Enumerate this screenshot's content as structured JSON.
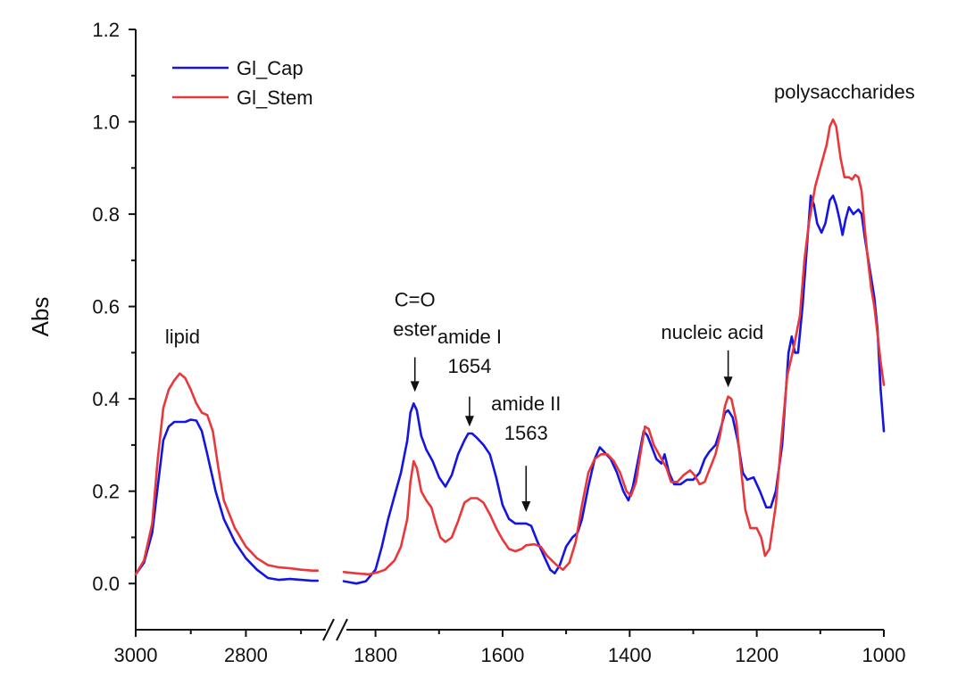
{
  "chart_data": {
    "type": "line",
    "title": "",
    "xlabel": "",
    "ylabel": "Abs",
    "ylim": [
      -0.1,
      1.2
    ],
    "xlim_segments": [
      [
        3000,
        2650
      ],
      [
        1850,
        1000
      ]
    ],
    "x_break": true,
    "grid": false,
    "legend_position": "top-left",
    "x_ticks": [
      3000,
      2800,
      1800,
      1600,
      1400,
      1200,
      1000
    ],
    "y_ticks": [
      0.0,
      0.2,
      0.4,
      0.6,
      0.8,
      1.0,
      1.2
    ],
    "y_tick_labels": [
      "0.0",
      "0.2",
      "0.4",
      "0.6",
      "0.8",
      "1.0",
      "1.2"
    ],
    "series": [
      {
        "name": "Gl_Cap",
        "color": "#1515e0",
        "points": [
          [
            3000,
            0.02
          ],
          [
            2985,
            0.045
          ],
          [
            2970,
            0.11
          ],
          [
            2960,
            0.21
          ],
          [
            2950,
            0.31
          ],
          [
            2940,
            0.34
          ],
          [
            2930,
            0.35
          ],
          [
            2920,
            0.35
          ],
          [
            2910,
            0.35
          ],
          [
            2900,
            0.355
          ],
          [
            2890,
            0.353
          ],
          [
            2880,
            0.33
          ],
          [
            2870,
            0.28
          ],
          [
            2855,
            0.2
          ],
          [
            2840,
            0.14
          ],
          [
            2820,
            0.09
          ],
          [
            2800,
            0.055
          ],
          [
            2780,
            0.03
          ],
          [
            2760,
            0.012
          ],
          [
            2740,
            0.008
          ],
          [
            2720,
            0.01
          ],
          [
            2700,
            0.008
          ],
          [
            2680,
            0.006
          ],
          [
            2670,
            0.006
          ],
          [
            1850,
            0.005
          ],
          [
            1830,
            0.0
          ],
          [
            1815,
            0.005
          ],
          [
            1800,
            0.03
          ],
          [
            1790,
            0.08
          ],
          [
            1780,
            0.14
          ],
          [
            1770,
            0.19
          ],
          [
            1760,
            0.24
          ],
          [
            1750,
            0.31
          ],
          [
            1745,
            0.37
          ],
          [
            1740,
            0.39
          ],
          [
            1735,
            0.375
          ],
          [
            1728,
            0.32
          ],
          [
            1720,
            0.29
          ],
          [
            1710,
            0.265
          ],
          [
            1700,
            0.23
          ],
          [
            1690,
            0.21
          ],
          [
            1680,
            0.235
          ],
          [
            1670,
            0.28
          ],
          [
            1660,
            0.31
          ],
          [
            1654,
            0.325
          ],
          [
            1648,
            0.325
          ],
          [
            1640,
            0.315
          ],
          [
            1630,
            0.3
          ],
          [
            1620,
            0.28
          ],
          [
            1610,
            0.23
          ],
          [
            1600,
            0.17
          ],
          [
            1590,
            0.14
          ],
          [
            1580,
            0.13
          ],
          [
            1570,
            0.13
          ],
          [
            1563,
            0.13
          ],
          [
            1555,
            0.125
          ],
          [
            1545,
            0.09
          ],
          [
            1535,
            0.06
          ],
          [
            1525,
            0.03
          ],
          [
            1518,
            0.022
          ],
          [
            1510,
            0.04
          ],
          [
            1500,
            0.08
          ],
          [
            1490,
            0.1
          ],
          [
            1482,
            0.11
          ],
          [
            1475,
            0.14
          ],
          [
            1465,
            0.21
          ],
          [
            1455,
            0.27
          ],
          [
            1447,
            0.295
          ],
          [
            1440,
            0.285
          ],
          [
            1430,
            0.27
          ],
          [
            1420,
            0.24
          ],
          [
            1410,
            0.2
          ],
          [
            1402,
            0.18
          ],
          [
            1395,
            0.21
          ],
          [
            1385,
            0.28
          ],
          [
            1378,
            0.33
          ],
          [
            1372,
            0.32
          ],
          [
            1365,
            0.295
          ],
          [
            1358,
            0.27
          ],
          [
            1350,
            0.26
          ],
          [
            1345,
            0.28
          ],
          [
            1338,
            0.24
          ],
          [
            1330,
            0.215
          ],
          [
            1320,
            0.215
          ],
          [
            1310,
            0.225
          ],
          [
            1300,
            0.225
          ],
          [
            1290,
            0.24
          ],
          [
            1282,
            0.27
          ],
          [
            1275,
            0.285
          ],
          [
            1265,
            0.3
          ],
          [
            1258,
            0.33
          ],
          [
            1250,
            0.37
          ],
          [
            1245,
            0.375
          ],
          [
            1238,
            0.36
          ],
          [
            1230,
            0.31
          ],
          [
            1222,
            0.24
          ],
          [
            1215,
            0.225
          ],
          [
            1205,
            0.23
          ],
          [
            1195,
            0.2
          ],
          [
            1185,
            0.165
          ],
          [
            1178,
            0.165
          ],
          [
            1170,
            0.2
          ],
          [
            1160,
            0.3
          ],
          [
            1150,
            0.5
          ],
          [
            1145,
            0.535
          ],
          [
            1140,
            0.5
          ],
          [
            1135,
            0.5
          ],
          [
            1128,
            0.6
          ],
          [
            1120,
            0.75
          ],
          [
            1115,
            0.84
          ],
          [
            1110,
            0.82
          ],
          [
            1105,
            0.78
          ],
          [
            1098,
            0.76
          ],
          [
            1092,
            0.78
          ],
          [
            1085,
            0.83
          ],
          [
            1080,
            0.84
          ],
          [
            1075,
            0.82
          ],
          [
            1070,
            0.79
          ],
          [
            1065,
            0.755
          ],
          [
            1060,
            0.79
          ],
          [
            1055,
            0.815
          ],
          [
            1048,
            0.8
          ],
          [
            1040,
            0.81
          ],
          [
            1035,
            0.8
          ],
          [
            1030,
            0.75
          ],
          [
            1022,
            0.68
          ],
          [
            1015,
            0.62
          ],
          [
            1010,
            0.55
          ],
          [
            1005,
            0.42
          ],
          [
            1000,
            0.33
          ]
        ]
      },
      {
        "name": "Gl_Stem",
        "color": "#e8383c",
        "points": [
          [
            3000,
            0.02
          ],
          [
            2985,
            0.05
          ],
          [
            2970,
            0.13
          ],
          [
            2960,
            0.27
          ],
          [
            2950,
            0.38
          ],
          [
            2940,
            0.42
          ],
          [
            2930,
            0.44
          ],
          [
            2920,
            0.455
          ],
          [
            2910,
            0.445
          ],
          [
            2900,
            0.42
          ],
          [
            2890,
            0.39
          ],
          [
            2880,
            0.37
          ],
          [
            2870,
            0.365
          ],
          [
            2860,
            0.33
          ],
          [
            2850,
            0.25
          ],
          [
            2840,
            0.18
          ],
          [
            2820,
            0.12
          ],
          [
            2800,
            0.08
          ],
          [
            2780,
            0.055
          ],
          [
            2760,
            0.04
          ],
          [
            2740,
            0.035
          ],
          [
            2720,
            0.033
          ],
          [
            2700,
            0.03
          ],
          [
            2680,
            0.028
          ],
          [
            2670,
            0.028
          ],
          [
            1850,
            0.025
          ],
          [
            1830,
            0.022
          ],
          [
            1810,
            0.02
          ],
          [
            1795,
            0.025
          ],
          [
            1785,
            0.03
          ],
          [
            1770,
            0.05
          ],
          [
            1760,
            0.08
          ],
          [
            1750,
            0.14
          ],
          [
            1745,
            0.22
          ],
          [
            1740,
            0.265
          ],
          [
            1735,
            0.25
          ],
          [
            1728,
            0.2
          ],
          [
            1720,
            0.18
          ],
          [
            1712,
            0.165
          ],
          [
            1705,
            0.13
          ],
          [
            1698,
            0.1
          ],
          [
            1690,
            0.09
          ],
          [
            1680,
            0.1
          ],
          [
            1670,
            0.135
          ],
          [
            1660,
            0.175
          ],
          [
            1650,
            0.185
          ],
          [
            1640,
            0.185
          ],
          [
            1630,
            0.175
          ],
          [
            1620,
            0.15
          ],
          [
            1610,
            0.12
          ],
          [
            1600,
            0.095
          ],
          [
            1590,
            0.075
          ],
          [
            1580,
            0.07
          ],
          [
            1570,
            0.075
          ],
          [
            1563,
            0.083
          ],
          [
            1550,
            0.085
          ],
          [
            1540,
            0.08
          ],
          [
            1530,
            0.06
          ],
          [
            1515,
            0.04
          ],
          [
            1505,
            0.03
          ],
          [
            1495,
            0.045
          ],
          [
            1485,
            0.09
          ],
          [
            1475,
            0.17
          ],
          [
            1465,
            0.24
          ],
          [
            1455,
            0.27
          ],
          [
            1445,
            0.28
          ],
          [
            1435,
            0.28
          ],
          [
            1425,
            0.265
          ],
          [
            1415,
            0.24
          ],
          [
            1405,
            0.2
          ],
          [
            1398,
            0.19
          ],
          [
            1390,
            0.22
          ],
          [
            1382,
            0.29
          ],
          [
            1376,
            0.34
          ],
          [
            1370,
            0.335
          ],
          [
            1362,
            0.3
          ],
          [
            1350,
            0.27
          ],
          [
            1342,
            0.25
          ],
          [
            1335,
            0.22
          ],
          [
            1325,
            0.22
          ],
          [
            1315,
            0.235
          ],
          [
            1305,
            0.245
          ],
          [
            1298,
            0.235
          ],
          [
            1290,
            0.215
          ],
          [
            1282,
            0.22
          ],
          [
            1275,
            0.245
          ],
          [
            1265,
            0.28
          ],
          [
            1258,
            0.32
          ],
          [
            1250,
            0.385
          ],
          [
            1245,
            0.405
          ],
          [
            1240,
            0.4
          ],
          [
            1232,
            0.35
          ],
          [
            1225,
            0.25
          ],
          [
            1218,
            0.16
          ],
          [
            1210,
            0.12
          ],
          [
            1200,
            0.12
          ],
          [
            1193,
            0.1
          ],
          [
            1187,
            0.06
          ],
          [
            1180,
            0.075
          ],
          [
            1170,
            0.17
          ],
          [
            1162,
            0.3
          ],
          [
            1152,
            0.45
          ],
          [
            1142,
            0.51
          ],
          [
            1132,
            0.58
          ],
          [
            1125,
            0.7
          ],
          [
            1118,
            0.78
          ],
          [
            1108,
            0.86
          ],
          [
            1098,
            0.91
          ],
          [
            1090,
            0.95
          ],
          [
            1085,
            0.99
          ],
          [
            1080,
            1.005
          ],
          [
            1075,
            0.99
          ],
          [
            1068,
            0.92
          ],
          [
            1062,
            0.88
          ],
          [
            1055,
            0.88
          ],
          [
            1050,
            0.875
          ],
          [
            1045,
            0.885
          ],
          [
            1040,
            0.88
          ],
          [
            1035,
            0.85
          ],
          [
            1030,
            0.77
          ],
          [
            1025,
            0.7
          ],
          [
            1020,
            0.64
          ],
          [
            1015,
            0.6
          ],
          [
            1010,
            0.54
          ],
          [
            1005,
            0.48
          ],
          [
            1000,
            0.43
          ]
        ]
      }
    ],
    "annotations": [
      {
        "lines": [
          "lipid"
        ],
        "x": 2915,
        "y": 0.52,
        "arrow": false
      },
      {
        "lines": [
          "C=O",
          "ester"
        ],
        "x": 1738,
        "y": 0.6,
        "arrow": true,
        "arrow_from": 0.49,
        "arrow_to": 0.415
      },
      {
        "lines": [
          "amide I",
          "1654"
        ],
        "x": 1652,
        "y": 0.52,
        "arrow": true,
        "arrow_from": 0.405,
        "arrow_to": 0.34
      },
      {
        "lines": [
          "amide II",
          "1563"
        ],
        "x": 1563,
        "y": 0.375,
        "arrow": true,
        "arrow_from": 0.255,
        "arrow_to": 0.155
      },
      {
        "lines": [
          "nucleic acid"
        ],
        "x": 1270,
        "y": 0.53,
        "arrow": true,
        "arrow_x": 1245,
        "arrow_from": 0.505,
        "arrow_to": 0.425
      },
      {
        "lines": [
          "polysaccharides"
        ],
        "x": 1062,
        "y": 1.05,
        "arrow": false
      }
    ]
  }
}
